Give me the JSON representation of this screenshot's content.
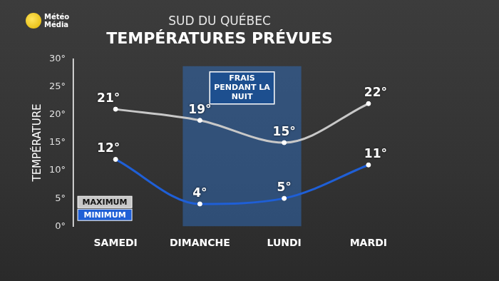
{
  "chart_data": {
    "type": "line",
    "brand": "Météo Média",
    "title": "SUD DU QUÉBEC",
    "subtitle": "TEMPÉRATURES PRÉVUES",
    "y_label": "TEMPÉRATURE",
    "categories": [
      "SAMEDI",
      "DIMANCHE",
      "LUNDI",
      "MARDI"
    ],
    "series": [
      {
        "name": "MAXIMUM",
        "color": "#c8c8c8",
        "values": [
          21,
          19,
          15,
          22
        ],
        "value_labels": [
          "21°",
          "19°",
          "15°",
          "22°"
        ]
      },
      {
        "name": "MINIMUM",
        "color": "#1f5fd6",
        "values": [
          12,
          4,
          5,
          11
        ],
        "value_labels": [
          "12°",
          "4°",
          "5°",
          "11°"
        ]
      }
    ],
    "ylim": [
      0,
      30
    ],
    "yticks": [
      {
        "value": 0,
        "label": "0°"
      },
      {
        "value": 5,
        "label": "5°"
      },
      {
        "value": 10,
        "label": "10°"
      },
      {
        "value": 15,
        "label": "15°"
      },
      {
        "value": 20,
        "label": "20°"
      },
      {
        "value": 25,
        "label": "25°"
      },
      {
        "value": 30,
        "label": "30°"
      }
    ],
    "grid": false,
    "legend": "bottom left",
    "data_labels": true,
    "marker": "circle",
    "annotations": [
      {
        "text": "FRAIS PENDANT LA NUIT",
        "from": "DIMANCHE",
        "to": "LUNDI"
      }
    ]
  }
}
